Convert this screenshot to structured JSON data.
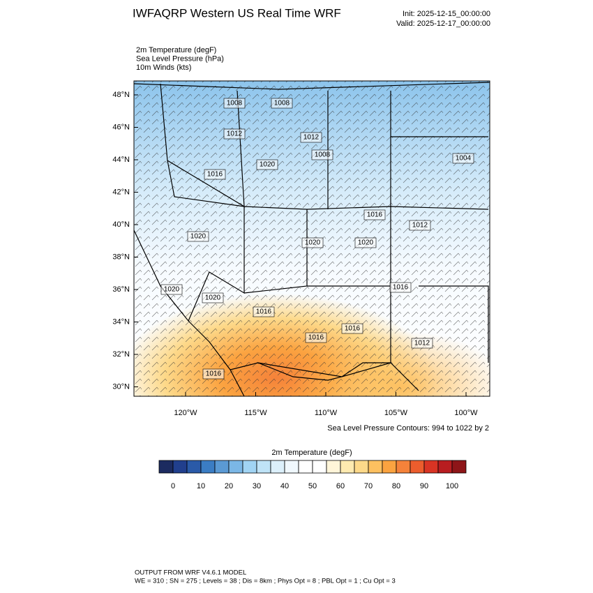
{
  "header": {
    "title": "IWFAQRP Western US Real Time WRF",
    "init": "Init: 2025-12-15_00:00:00",
    "valid": "Valid: 2025-12-17_00:00:00"
  },
  "fields": [
    "2m Temperature   (degF)",
    "Sea Level Pressure   (hPa)",
    "10m Winds   (kts)"
  ],
  "lat_labels": [
    "48°N",
    "46°N",
    "44°N",
    "42°N",
    "40°N",
    "38°N",
    "36°N",
    "34°N",
    "32°N",
    "30°N"
  ],
  "lon_labels": [
    "120°W",
    "115°W",
    "110°W",
    "105°W",
    "100°W"
  ],
  "contour_labels": [
    "1008",
    "1008",
    "1012",
    "1012",
    "1008",
    "1016",
    "1020",
    "1016",
    "1012",
    "1004",
    "1020",
    "1020",
    "1020",
    "1020",
    "1020",
    "1016",
    "1016",
    "1016",
    "1016",
    "1012",
    "1016"
  ],
  "contour_note": "Sea Level Pressure Contours: 994 to 1022 by 2",
  "colorbar": {
    "title": "2m Temperature  (degF)",
    "ticks": [
      0,
      10,
      20,
      30,
      40,
      50,
      60,
      70,
      80,
      90,
      100
    ],
    "colors": [
      "#1c2b60",
      "#213f8d",
      "#2a5aa8",
      "#3b7dc4",
      "#5b9ad4",
      "#7bb7e6",
      "#a1d4f4",
      "#bfe3f7",
      "#dcf0fb",
      "#f0f8fd",
      "#ffffff",
      "#ffffff",
      "#fff5d9",
      "#feeab0",
      "#fdd98a",
      "#fdc060",
      "#fba340",
      "#f5823a",
      "#ec5d2d",
      "#d93424",
      "#b81d20",
      "#8e1518"
    ]
  },
  "footer": {
    "line1": "OUTPUT FROM WRF V4.6.1 MODEL",
    "line2": "WE = 310 ; SN = 275 ; Levels = 38 ; Dis = 8km ; Phys Opt = 8 ; PBL Opt = 1 ; Cu Opt = 3"
  }
}
